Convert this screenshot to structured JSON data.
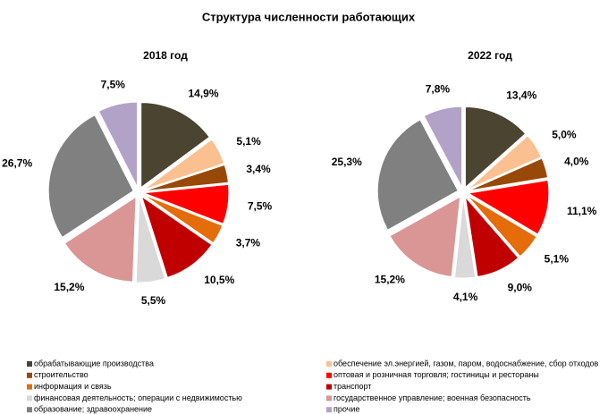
{
  "title": "Структура численности работающих",
  "categories": [
    "обрабатывающие производства",
    "обеспечение эл.энергией, газом, паром, водоснабжение, сбор отходов",
    "строительство",
    "оптовая и розничная торговля; гостиницы и рестораны",
    "информация и связь",
    "транспорт",
    "финансовая деятельность; операции с недвижимостью",
    "государственное управление; военная безопасность",
    "образование; здравоохранение",
    "прочие"
  ],
  "colors": [
    "#4a4430",
    "#fac090",
    "#984807",
    "#ff0000",
    "#e46c0a",
    "#c00000",
    "#d9d9d9",
    "#d99694",
    "#808080",
    "#b3a2c7"
  ],
  "chart_data": [
    {
      "type": "pie",
      "title": "2018 год",
      "values": [
        14.9,
        5.1,
        3.4,
        7.5,
        3.7,
        10.5,
        5.5,
        15.2,
        26.7,
        7.5
      ],
      "value_labels": [
        "14,9%",
        "5,1%",
        "3,4%",
        "7,5%",
        "3,7%",
        "10,5%",
        "5,5%",
        "15,2%",
        "26,7%",
        "7,5%"
      ]
    },
    {
      "type": "pie",
      "title": "2022 год",
      "values": [
        13.4,
        5.0,
        4.0,
        11.1,
        5.1,
        9.0,
        4.1,
        15.2,
        25.3,
        7.8
      ],
      "value_labels": [
        "13,4%",
        "5,0%",
        "4,0%",
        "11,1%",
        "5,1%",
        "9,0%",
        "4,1%",
        "15,2%",
        "25,3%",
        "7,8%"
      ]
    }
  ]
}
